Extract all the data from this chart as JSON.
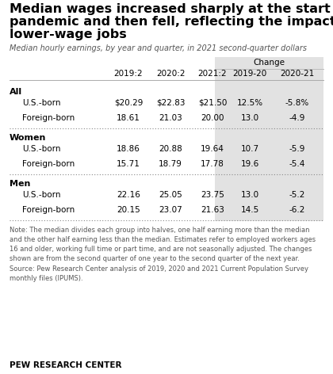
{
  "title_lines": [
    "Median wages increased sharply at the start of the",
    "pandemic and then fell, reflecting the impact on",
    "lower-wage jobs"
  ],
  "subtitle": "Median hourly earnings, by year and quarter, in 2021 second-quarter dollars",
  "col_headers_year": [
    "2019:2",
    "2020:2",
    "2021:2"
  ],
  "col_headers_change": [
    "2019-20",
    "2020-21"
  ],
  "change_header": "Change",
  "sections": [
    {
      "group": "All",
      "rows": [
        {
          "label": "U.S.-born",
          "vals": [
            "$20.29",
            "$22.83",
            "$21.50",
            "12.5%",
            "-5.8%"
          ]
        },
        {
          "label": "Foreign-born",
          "vals": [
            "18.61",
            "21.03",
            "20.00",
            "13.0",
            "-4.9"
          ]
        }
      ]
    },
    {
      "group": "Women",
      "rows": [
        {
          "label": "U.S.-born",
          "vals": [
            "18.86",
            "20.88",
            "19.64",
            "10.7",
            "-5.9"
          ]
        },
        {
          "label": "Foreign-born",
          "vals": [
            "15.71",
            "18.79",
            "17.78",
            "19.6",
            "-5.4"
          ]
        }
      ]
    },
    {
      "group": "Men",
      "rows": [
        {
          "label": "U.S.-born",
          "vals": [
            "22.16",
            "25.05",
            "23.75",
            "13.0",
            "-5.2"
          ]
        },
        {
          "label": "Foreign-born",
          "vals": [
            "20.15",
            "23.07",
            "21.63",
            "14.5",
            "-6.2"
          ]
        }
      ]
    }
  ],
  "note": "Note: The median divides each group into halves, one half earning more than the median\nand the other half earning less than the median. Estimates refer to employed workers ages\n16 and older, working full time or part time, and are not seasonally adjusted. The changes\nshown are from the second quarter of one year to the second quarter of the next year.\nSource: Pew Research Center analysis of 2019, 2020 and 2021 Current Population Survey\nmonthly files (IPUMS).",
  "branding": "PEW RESEARCH CENTER",
  "bg_color": "#ffffff",
  "shade_color": "#e2e2e2",
  "divider_color": "#aaaaaa",
  "text_color": "#000000",
  "note_color": "#555555",
  "title_fontsize": 11.5,
  "subtitle_fontsize": 7.0,
  "header_fontsize": 7.5,
  "data_fontsize": 7.5,
  "group_fontsize": 8.0,
  "note_fontsize": 6.0,
  "brand_fontsize": 7.5
}
